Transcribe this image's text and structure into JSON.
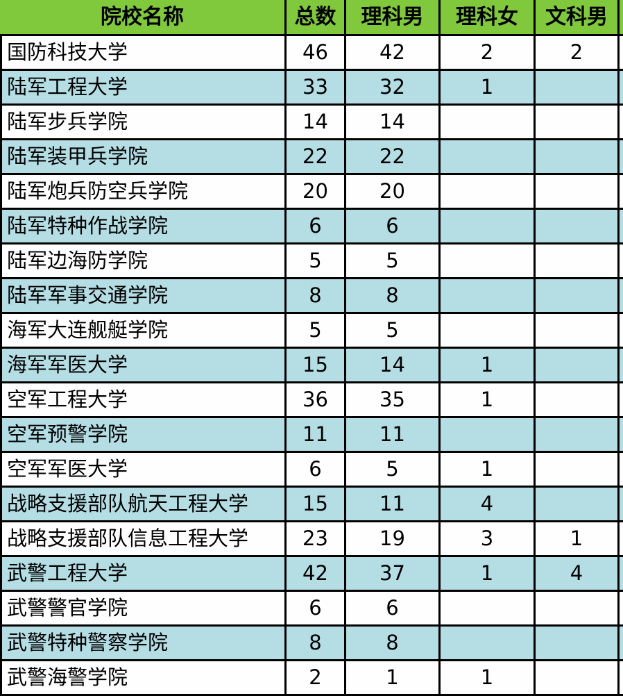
{
  "chart_data": {
    "type": "table",
    "columns": [
      "院校名称",
      "总数",
      "理科男",
      "理科女",
      "文科男"
    ],
    "rows": [
      {
        "school": "国防科技大学",
        "total": "46",
        "science_male": "42",
        "science_female": "2",
        "liberal_arts_male": "2"
      },
      {
        "school": "陆军工程大学",
        "total": "33",
        "science_male": "32",
        "science_female": "1",
        "liberal_arts_male": ""
      },
      {
        "school": "陆军步兵学院",
        "total": "14",
        "science_male": "14",
        "science_female": "",
        "liberal_arts_male": ""
      },
      {
        "school": "陆军装甲兵学院",
        "total": "22",
        "science_male": "22",
        "science_female": "",
        "liberal_arts_male": ""
      },
      {
        "school": "陆军炮兵防空兵学院",
        "total": "20",
        "science_male": "20",
        "science_female": "",
        "liberal_arts_male": ""
      },
      {
        "school": "陆军特种作战学院",
        "total": "6",
        "science_male": "6",
        "science_female": "",
        "liberal_arts_male": ""
      },
      {
        "school": "陆军边海防学院",
        "total": "5",
        "science_male": "5",
        "science_female": "",
        "liberal_arts_male": ""
      },
      {
        "school": "陆军军事交通学院",
        "total": "8",
        "science_male": "8",
        "science_female": "",
        "liberal_arts_male": ""
      },
      {
        "school": "海军大连舰艇学院",
        "total": "5",
        "science_male": "5",
        "science_female": "",
        "liberal_arts_male": ""
      },
      {
        "school": "海军军医大学",
        "total": "15",
        "science_male": "14",
        "science_female": "1",
        "liberal_arts_male": ""
      },
      {
        "school": "空军工程大学",
        "total": "36",
        "science_male": "35",
        "science_female": "1",
        "liberal_arts_male": ""
      },
      {
        "school": "空军预警学院",
        "total": "11",
        "science_male": "11",
        "science_female": "",
        "liberal_arts_male": ""
      },
      {
        "school": "空军军医大学",
        "total": "6",
        "science_male": "5",
        "science_female": "1",
        "liberal_arts_male": ""
      },
      {
        "school": "战略支援部队航天工程大学",
        "total": "15",
        "science_male": "11",
        "science_female": "4",
        "liberal_arts_male": ""
      },
      {
        "school": "战略支援部队信息工程大学",
        "total": "23",
        "science_male": "19",
        "science_female": "3",
        "liberal_arts_male": "1"
      },
      {
        "school": "武警工程大学",
        "total": "42",
        "science_male": "37",
        "science_female": "1",
        "liberal_arts_male": "4"
      },
      {
        "school": "武警警官学院",
        "total": "6",
        "science_male": "6",
        "science_female": "",
        "liberal_arts_male": ""
      },
      {
        "school": "武警特种警察学院",
        "total": "8",
        "science_male": "8",
        "science_female": "",
        "liberal_arts_male": ""
      },
      {
        "school": "武警海警学院",
        "total": "2",
        "science_male": "1",
        "science_female": "1",
        "liberal_arts_male": ""
      }
    ]
  },
  "colors": {
    "header_green": "#80C83C",
    "stripe_blue": "#B5DDE4",
    "stripe_white": "#FEFEFE",
    "border_black": "#000000",
    "text_black": "#000000"
  }
}
